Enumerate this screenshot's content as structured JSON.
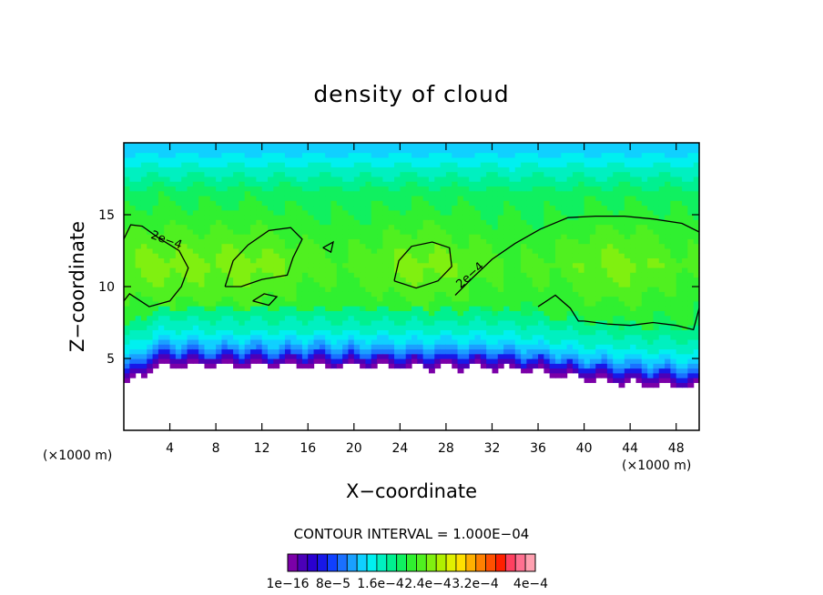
{
  "chart_data": {
    "type": "heatmap",
    "title": "density of cloud",
    "xlabel": "X−coordinate",
    "ylabel": "Z−coordinate",
    "x_unit": "(×1000 m)",
    "y_unit": "(×1000 m)",
    "xlim": [
      0,
      50
    ],
    "ylim": [
      0,
      20
    ],
    "x_ticks": [
      4,
      8,
      12,
      16,
      20,
      24,
      28,
      32,
      36,
      40,
      44,
      48
    ],
    "y_ticks": [
      5,
      10,
      15
    ],
    "contour_interval_text": "CONTOUR INTERVAL = 1.000E−04",
    "contour_line_labels": [
      "2e−4",
      "2e−4"
    ],
    "contour_line_level": 0.0002,
    "colorbar_tick_labels": [
      "1e−16",
      "8e−5",
      "1.6e−4",
      "2.4e−4",
      "3.2e−4",
      "4e−4"
    ],
    "colorbar_colors": [
      "#7b00a8",
      "#4b00b8",
      "#2a00d0",
      "#1818e8",
      "#1040ff",
      "#1a70ff",
      "#1aa0ff",
      "#10d0ff",
      "#00f0f0",
      "#00f0c0",
      "#00f090",
      "#10f060",
      "#30f030",
      "#50f020",
      "#80f010",
      "#b0f000",
      "#e0f000",
      "#ffe000",
      "#ffb000",
      "#ff8000",
      "#ff5000",
      "#ff2000",
      "#ff4060",
      "#ff7090",
      "#ffa0b0"
    ],
    "field_profile": {
      "cloud_top_z": 19.5,
      "cloud_base_z_by_x": [
        [
          0,
          3.2
        ],
        [
          3,
          4.6
        ],
        [
          8,
          4.5
        ],
        [
          16,
          4.5
        ],
        [
          24,
          4.4
        ],
        [
          32,
          4.4
        ],
        [
          36,
          4.1
        ],
        [
          40,
          3.6
        ],
        [
          44,
          3.3
        ],
        [
          50,
          3.0
        ]
      ],
      "max_density_regions_around_x": [
        3,
        11,
        26,
        43
      ]
    }
  }
}
